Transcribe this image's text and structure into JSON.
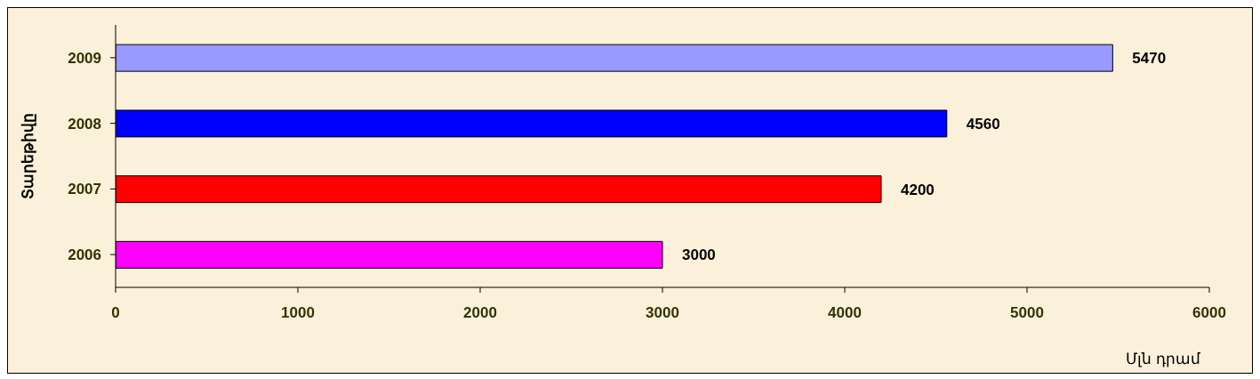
{
  "chart_data": {
    "type": "bar",
    "orientation": "horizontal",
    "categories": [
      "2009",
      "2008",
      "2007",
      "2006"
    ],
    "values": [
      5470,
      4560,
      4200,
      3000
    ],
    "colors": [
      "#9999ff",
      "#0000ff",
      "#ff0000",
      "#ff00ff"
    ],
    "xlim": [
      0,
      6000
    ],
    "xticks": [
      0,
      1000,
      2000,
      3000,
      4000,
      5000,
      6000
    ],
    "xlabel": "Մլն դրամ",
    "ylabel": "Տարեթիվը",
    "data_labels": true,
    "grid": false
  }
}
